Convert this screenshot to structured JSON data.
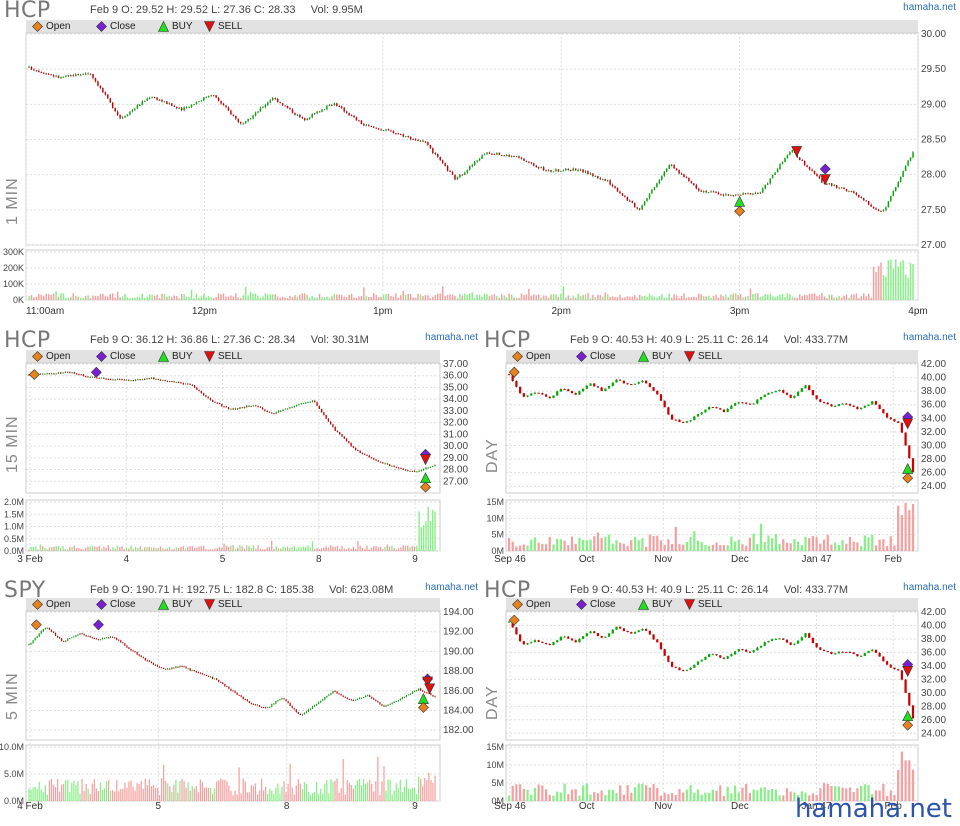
{
  "brand": "hamaha.net",
  "footer_brand": "hamaha.net",
  "legend": [
    {
      "label": "Open",
      "color": "#e8821c",
      "shape": "diamond"
    },
    {
      "label": "Close",
      "color": "#7a1fd6",
      "shape": "diamond"
    },
    {
      "label": "BUY",
      "color": "#22dd22",
      "shape": "triangle-up"
    },
    {
      "label": "SELL",
      "color": "#dd1111",
      "shape": "triangle-down"
    }
  ],
  "colors": {
    "up": "#00aa00",
    "down": "#cc0000",
    "vol_up": "#88ee88",
    "vol_down": "#f5a0a0",
    "grid": "#dddddd"
  },
  "chart_data": [
    {
      "id": "p1",
      "type": "candlestick",
      "ticker": "HCP",
      "timeframe_label": "1 MIN",
      "info": "Feb 9 O: 29.52 H: 29.52 L: 27.36 C: 28.33     Vol: 9.95M",
      "ylim": [
        27.0,
        30.0
      ],
      "y_ticks": [
        "27.00",
        "27.50",
        "28.00",
        "28.50",
        "29.00",
        "29.50",
        "30.00"
      ],
      "vol_ticks": [
        "0K",
        "100K",
        "200K",
        "300K"
      ],
      "x_ticks": [
        "11:00am",
        "12pm",
        "1pm",
        "2pm",
        "3pm",
        "4pm"
      ],
      "anchors": [
        29.52,
        29.38,
        29.45,
        28.8,
        29.12,
        28.92,
        29.15,
        28.7,
        29.1,
        28.78,
        29.02,
        28.7,
        28.6,
        28.45,
        27.93,
        28.32,
        28.25,
        28.05,
        28.08,
        27.9,
        27.5,
        28.15,
        27.78,
        27.7,
        27.75,
        28.35,
        27.9,
        27.75,
        27.45,
        28.33
      ],
      "markers": [
        {
          "type": "open",
          "x": 0.8,
          "y": 27.48
        },
        {
          "type": "buy",
          "x": 0.8,
          "y": 27.62
        },
        {
          "type": "sell",
          "x": 0.864,
          "y": 28.33
        },
        {
          "type": "close",
          "x": 0.896,
          "y": 28.08
        },
        {
          "type": "sell",
          "x": 0.896,
          "y": 27.93
        }
      ],
      "volume_max": 300000,
      "volume_level": 0.12,
      "volume_end_spike": 0.85
    },
    {
      "id": "p2",
      "type": "candlestick",
      "ticker": "HCP",
      "timeframe_label": "15 MIN",
      "info": "Feb 9 O: 36.12 H: 36.86 L: 27.36 C: 28.34     Vol: 30.31M",
      "ylim": [
        26.0,
        37.0
      ],
      "y_ticks": [
        "27.00",
        "28.00",
        "29.00",
        "30.00",
        "31.00",
        "32.00",
        "33.00",
        "34.00",
        "35.00",
        "36.00",
        "37.00"
      ],
      "vol_ticks": [
        "0.0M",
        "0.5M",
        "1.0M",
        "1.5M",
        "2.0M"
      ],
      "x_ticks": [
        "3 Feb",
        "4",
        "5",
        "8",
        "9"
      ],
      "anchors": [
        36.1,
        36.2,
        36.3,
        35.9,
        35.7,
        35.6,
        35.8,
        35.5,
        35.2,
        33.8,
        33.1,
        33.5,
        32.8,
        33.4,
        33.9,
        31.5,
        29.8,
        28.8,
        28.2,
        27.8,
        28.34
      ],
      "gaps": [
        10,
        14
      ],
      "markers": [
        {
          "type": "open",
          "x": 0.02,
          "y": 36.1
        },
        {
          "type": "close",
          "x": 0.17,
          "y": 36.3
        },
        {
          "type": "close",
          "x": 0.965,
          "y": 29.3
        },
        {
          "type": "sell",
          "x": 0.965,
          "y": 28.85
        },
        {
          "type": "buy",
          "x": 0.965,
          "y": 27.3
        },
        {
          "type": "open",
          "x": 0.965,
          "y": 26.5
        }
      ],
      "volume_max": 2000000,
      "volume_level": 0.1,
      "volume_end_spike": 0.95
    },
    {
      "id": "p3",
      "type": "candlestick",
      "ticker": "HCP",
      "timeframe_label": "DAY",
      "info": "Feb 9 O: 40.53 H: 40.9 L: 25.11 C: 26.14     Vol: 433.77M",
      "ylim": [
        23.0,
        42.0
      ],
      "y_ticks": [
        "24.00",
        "26.00",
        "28.00",
        "30.00",
        "32.00",
        "34.00",
        "36.00",
        "38.00",
        "40.00",
        "42.00"
      ],
      "vol_ticks": [
        "0M",
        "5M",
        "10M",
        "15M"
      ],
      "x_ticks": [
        "Sep 46",
        "Oct",
        "Nov",
        "Dec",
        "Jan 47",
        "Feb"
      ],
      "anchors": [
        40.5,
        37.2,
        37.8,
        37.0,
        38.5,
        37.5,
        39.2,
        38.0,
        39.8,
        38.8,
        39.5,
        37.5,
        34.0,
        33.2,
        34.5,
        35.8,
        35.0,
        36.5,
        36.0,
        37.5,
        38.2,
        37.0,
        38.8,
        36.5,
        35.8,
        36.2,
        35.3,
        36.5,
        34.2,
        33.2,
        26.14
      ],
      "markers": [
        {
          "type": "open",
          "x": 0.02,
          "y": 40.8
        },
        {
          "type": "close",
          "x": 0.975,
          "y": 34.2
        },
        {
          "type": "sell",
          "x": 0.975,
          "y": 33.2
        },
        {
          "type": "buy",
          "x": 0.975,
          "y": 26.6
        },
        {
          "type": "open",
          "x": 0.975,
          "y": 25.2
        }
      ],
      "volume_max": 15000000,
      "volume_level": 0.28,
      "volume_end_spike": 1.0
    },
    {
      "id": "p4",
      "type": "candlestick",
      "ticker": "SPY",
      "timeframe_label": "5 MIN",
      "info": "Feb 9 O: 190.71 H: 192.75 L: 182.8 C: 185.38     Vol: 623.08M",
      "ylim": [
        181.0,
        194.0
      ],
      "y_ticks": [
        "182.00",
        "184.00",
        "186.00",
        "188.00",
        "190.00",
        "192.00",
        "194.00"
      ],
      "vol_ticks": [
        "0.0M",
        "5.0M",
        "10.0M"
      ],
      "x_ticks": [
        "4 Feb",
        "5",
        "8",
        "9"
      ],
      "anchors": [
        190.7,
        192.5,
        191.0,
        191.8,
        191.2,
        191.5,
        190.2,
        189.0,
        188.2,
        188.5,
        187.8,
        187.2,
        186.0,
        184.8,
        184.2,
        185.3,
        183.5,
        184.6,
        186.0,
        185.0,
        185.5,
        184.4,
        185.2,
        186.2,
        185.38
      ],
      "gaps": [
        12
      ],
      "markers": [
        {
          "type": "open",
          "x": 0.025,
          "y": 192.7
        },
        {
          "type": "close",
          "x": 0.175,
          "y": 192.7
        },
        {
          "type": "close",
          "x": 0.97,
          "y": 187.2
        },
        {
          "type": "sell",
          "x": 0.97,
          "y": 186.9
        },
        {
          "type": "sell",
          "x": 0.975,
          "y": 186.2
        },
        {
          "type": "buy",
          "x": 0.96,
          "y": 185.2
        },
        {
          "type": "open",
          "x": 0.96,
          "y": 184.3
        }
      ],
      "volume_max": 10000000,
      "volume_level": 0.35,
      "volume_end_spike": 0.55
    },
    {
      "id": "p5",
      "type": "candlestick",
      "ticker": "HCP",
      "timeframe_label": "DAY",
      "info": "Feb 9 O: 40.53 H: 40.9 L: 25.11 C: 26.14     Vol: 433.77M",
      "ylim": [
        23.0,
        42.0
      ],
      "y_ticks": [
        "24.00",
        "26.00",
        "28.00",
        "30.00",
        "32.00",
        "34.00",
        "36.00",
        "38.00",
        "40.00",
        "42.00"
      ],
      "vol_ticks": [
        "0M",
        "5M",
        "10M",
        "15M"
      ],
      "x_ticks": [
        "Sep 46",
        "Oct",
        "Nov",
        "Dec",
        "Jan 47",
        "Feb"
      ],
      "anchors": [
        40.5,
        37.2,
        37.8,
        37.0,
        38.5,
        37.5,
        39.2,
        38.0,
        39.8,
        38.8,
        39.5,
        37.5,
        34.0,
        33.2,
        34.5,
        35.8,
        35.0,
        36.5,
        36.0,
        37.5,
        38.2,
        37.0,
        38.8,
        36.5,
        35.8,
        36.2,
        35.3,
        36.5,
        34.2,
        33.2,
        26.14
      ],
      "markers": [
        {
          "type": "open",
          "x": 0.02,
          "y": 40.8
        },
        {
          "type": "close",
          "x": 0.975,
          "y": 34.2
        },
        {
          "type": "sell",
          "x": 0.975,
          "y": 33.2
        },
        {
          "type": "buy",
          "x": 0.975,
          "y": 26.6
        },
        {
          "type": "open",
          "x": 0.975,
          "y": 25.2
        }
      ],
      "volume_max": 15000000,
      "volume_level": 0.28,
      "volume_end_spike": 1.0
    }
  ]
}
